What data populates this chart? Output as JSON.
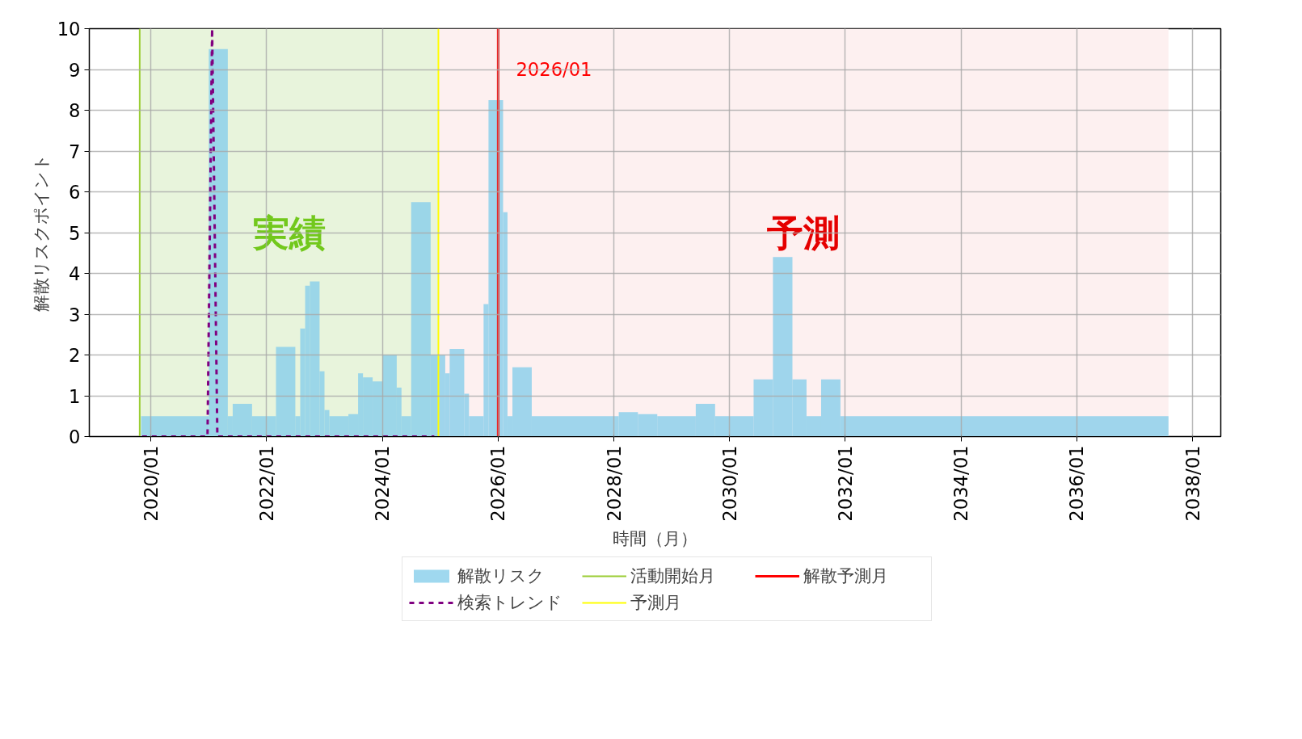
{
  "chart_data": {
    "type": "histogram",
    "xlabel": "時間（月）",
    "ylabel": "解散リスクポイント",
    "xlim": [
      "2018-12-09",
      "2038-06-27"
    ],
    "ylim": [
      0,
      10
    ],
    "xticks": [
      {
        "value": "2020-01",
        "label": "2020/01"
      },
      {
        "value": "2022-01",
        "label": "2022/01"
      },
      {
        "value": "2024-01",
        "label": "2024/01"
      },
      {
        "value": "2026-01",
        "label": "2026/01"
      },
      {
        "value": "2028-01",
        "label": "2028/01"
      },
      {
        "value": "2030-01",
        "label": "2030/01"
      },
      {
        "value": "2032-01",
        "label": "2032/01"
      },
      {
        "value": "2034-01",
        "label": "2034/01"
      },
      {
        "value": "2036-01",
        "label": "2036/01"
      },
      {
        "value": "2038-01",
        "label": "2038/01"
      }
    ],
    "yticks": [
      0,
      1,
      2,
      3,
      4,
      5,
      6,
      7,
      8,
      9,
      10
    ],
    "series": [
      {
        "name": "解散リスク",
        "color": "#87ceeb",
        "bins": [
          "2019-11",
          "2021-01",
          "2021-05",
          "2021-06",
          "2021-10",
          "2022-03",
          "2022-07",
          "2022-08",
          "2022-09",
          "2022-10",
          "2022-12",
          "2023-01",
          "2023-02",
          "2023-06",
          "2023-08",
          "2023-09",
          "2023-11",
          "2024-01",
          "2024-04",
          "2024-05",
          "2024-07",
          "2024-11",
          "2025-02",
          "2025-03",
          "2025-06",
          "2025-07",
          "2025-10",
          "2025-11",
          "2026-02",
          "2026-03",
          "2026-04",
          "2026-08",
          "2028-02",
          "2028-06",
          "2028-10",
          "2029-06",
          "2029-10",
          "2030-06",
          "2030-10",
          "2031-02",
          "2031-05",
          "2031-08",
          "2031-12",
          "2037-08"
        ],
        "values": [
          0.5,
          9.5,
          0.5,
          0.8,
          0.5,
          2.2,
          0.5,
          2.65,
          3.7,
          3.8,
          1.6,
          0.65,
          0.5,
          0.55,
          1.55,
          1.45,
          1.35,
          2.0,
          1.2,
          0.5,
          5.75,
          2.0,
          1.55,
          2.15,
          1.05,
          0.5,
          3.25,
          8.25,
          5.5,
          0.5,
          1.7,
          0.5,
          0.6,
          0.55,
          0.5,
          0.8,
          0.5,
          1.4,
          4.4,
          1.4,
          0.5,
          1.4,
          0.5
        ]
      },
      {
        "type": "line",
        "name": "検索トレンド",
        "color": "#800080",
        "line_style": "dashed",
        "x": [
          "2019-11-07",
          "2020-12-24",
          "2021-01-22",
          "2021-02-24",
          "2024-11-24"
        ],
        "values": [
          0,
          0,
          10,
          0,
          0
        ]
      }
    ],
    "ref_lines": [
      {
        "axis": "x",
        "value": "2019-10-23",
        "label": "活動開始月",
        "color": "#9acd32"
      },
      {
        "axis": "x",
        "value": "2024-12-20",
        "label": "予測月",
        "color": "#ffff00"
      },
      {
        "axis": "x",
        "value": "2026-01-01",
        "label": "解散予測月",
        "color": "#ff0000"
      }
    ],
    "bands": [
      {
        "axis": "x",
        "from": "2019-10-23",
        "to": "2024-12-20",
        "label": "実績",
        "color": "#e8f4dc"
      },
      {
        "axis": "x",
        "from": "2024-12-20",
        "to": "2037-08-01",
        "label": "予測",
        "color": "#fdf0f0"
      }
    ],
    "annotations": [
      {
        "text": "2026/01",
        "x": "2026-01-01",
        "y": 9
      }
    ],
    "grid": true,
    "legend": "bottom"
  }
}
